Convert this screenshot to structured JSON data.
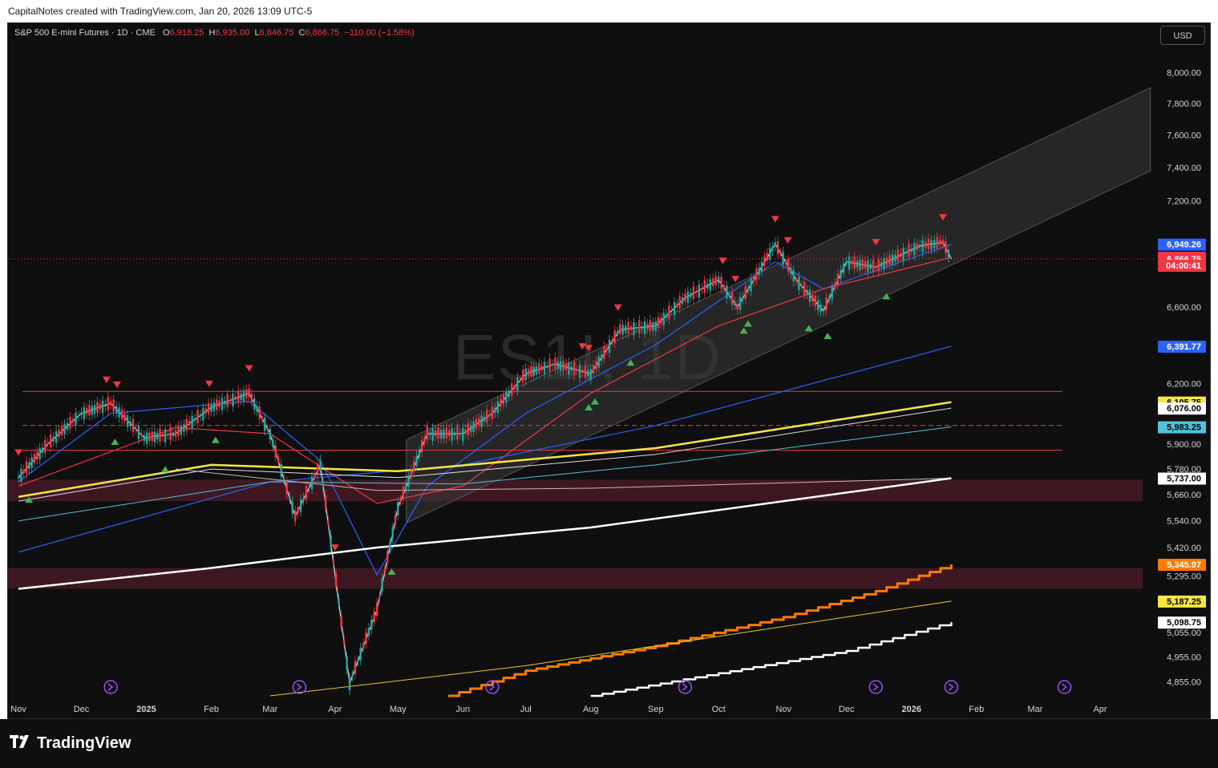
{
  "header": {
    "credit": "CapitalNotes created with TradingView.com, Jan 20, 2026 13:09 UTC-5"
  },
  "legend": {
    "symbol": "S&P 500 E-mini Futures · 1D · CME",
    "o_label": "O",
    "o": "6,918.25",
    "h_label": "H",
    "h": "6,935.00",
    "l_label": "L",
    "l": "6,846.75",
    "c_label": "C",
    "c": "6,866.75",
    "change": "−110.00 (−1.58%)"
  },
  "currency_button": "USD",
  "watermark": "ES1!, 1D",
  "footer": {
    "brand": "TradingView",
    "logo_icon": "tradingview-logo-icon"
  },
  "colors": {
    "up": "#26a69a",
    "down": "#f23645",
    "blue_ma": "#2962ff",
    "red_ma": "#f23645",
    "yellow_ma": "#f5e642",
    "orange": "#ff7a00",
    "channel": "#2a2a2a"
  },
  "chart_data": {
    "type": "line",
    "title": "S&P 500 E-mini Futures · 1D · CME",
    "xlabel": "",
    "ylabel": "",
    "y_axis": {
      "scale": "log",
      "range": [
        4800,
        8150
      ],
      "ticks": [
        "8,000.00",
        "7,800.00",
        "7,600.00",
        "7,400.00",
        "7,200.00",
        "6,600.00",
        "6,200.00",
        "5,900.00",
        "5,780.00",
        "5,660.00",
        "5,540.00",
        "5,420.00",
        "5,295.00",
        "5,055.00",
        "4,955.00",
        "4,855.00"
      ]
    },
    "x_axis": {
      "ticks": [
        "Nov",
        "Dec",
        "2025",
        "Feb",
        "Mar",
        "Apr",
        "May",
        "Jun",
        "Jul",
        "Aug",
        "Sep",
        "Oct",
        "Nov",
        "Dec",
        "2026",
        "Feb",
        "Mar",
        "Apr"
      ]
    },
    "grid": false,
    "series": [
      {
        "name": "",
        "role": "price",
        "color": "#d1d4dc",
        "points": [
          [
            "2024-11-01",
            5740
          ],
          [
            "2024-11-15",
            5900
          ],
          [
            "2024-12-01",
            6050
          ],
          [
            "2024-12-15",
            6100
          ],
          [
            "2024-12-31",
            5930
          ],
          [
            "2025-01-15",
            5950
          ],
          [
            "2025-02-01",
            6080
          ],
          [
            "2025-02-19",
            6150
          ],
          [
            "2025-03-01",
            5950
          ],
          [
            "2025-03-13",
            5560
          ],
          [
            "2025-03-25",
            5800
          ],
          [
            "2025-04-04",
            5100
          ],
          [
            "2025-04-08",
            4850
          ],
          [
            "2025-04-21",
            5150
          ],
          [
            "2025-05-01",
            5600
          ],
          [
            "2025-05-15",
            5950
          ],
          [
            "2025-06-01",
            5950
          ],
          [
            "2025-06-15",
            6050
          ],
          [
            "2025-07-01",
            6250
          ],
          [
            "2025-07-15",
            6300
          ],
          [
            "2025-08-01",
            6250
          ],
          [
            "2025-08-15",
            6480
          ],
          [
            "2025-09-01",
            6500
          ],
          [
            "2025-09-15",
            6650
          ],
          [
            "2025-10-01",
            6750
          ],
          [
            "2025-10-10",
            6600
          ],
          [
            "2025-10-28",
            6950
          ],
          [
            "2025-11-07",
            6750
          ],
          [
            "2025-11-20",
            6580
          ],
          [
            "2025-12-01",
            6850
          ],
          [
            "2025-12-15",
            6820
          ],
          [
            "2026-01-05",
            6940
          ],
          [
            "2026-01-16",
            6960
          ],
          [
            "2026-01-20",
            6866.75
          ]
        ]
      },
      {
        "name": "",
        "role": "blue-ma-short",
        "color": "#2962ff",
        "points": [
          [
            "2024-11-01",
            5720
          ],
          [
            "2024-12-15",
            6050
          ],
          [
            "2025-02-19",
            6110
          ],
          [
            "2025-03-25",
            5820
          ],
          [
            "2025-04-21",
            5300
          ],
          [
            "2025-05-15",
            5700
          ],
          [
            "2025-07-01",
            6050
          ],
          [
            "2025-09-01",
            6400
          ],
          [
            "2025-10-28",
            6850
          ],
          [
            "2025-11-20",
            6700
          ],
          [
            "2026-01-20",
            6949.26
          ]
        ]
      },
      {
        "name": "",
        "role": "red-ma",
        "color": "#f23645",
        "points": [
          [
            "2024-11-01",
            5700
          ],
          [
            "2025-01-15",
            5980
          ],
          [
            "2025-03-01",
            5950
          ],
          [
            "2025-04-21",
            5620
          ],
          [
            "2025-06-01",
            5700
          ],
          [
            "2025-08-01",
            6150
          ],
          [
            "2025-10-01",
            6500
          ],
          [
            "2025-11-20",
            6700
          ],
          [
            "2026-01-20",
            6874.91
          ]
        ]
      },
      {
        "name": "",
        "role": "blue-ma-long",
        "color": "#2962ff",
        "points": [
          [
            "2024-11-01",
            5400
          ],
          [
            "2025-03-01",
            5720
          ],
          [
            "2025-06-01",
            5800
          ],
          [
            "2025-09-01",
            5990
          ],
          [
            "2026-01-20",
            6391.77
          ]
        ]
      },
      {
        "name": "",
        "role": "yellow-ma",
        "color": "#f5e642",
        "points": [
          [
            "2024-11-01",
            5650
          ],
          [
            "2025-02-01",
            5800
          ],
          [
            "2025-05-01",
            5770
          ],
          [
            "2025-09-01",
            5880
          ],
          [
            "2026-01-20",
            6105.75
          ]
        ]
      },
      {
        "name": "",
        "role": "white-ma",
        "color": "#e0e0e0",
        "points": [
          [
            "2024-11-01",
            5630
          ],
          [
            "2025-02-01",
            5780
          ],
          [
            "2025-05-01",
            5740
          ],
          [
            "2025-09-01",
            5850
          ],
          [
            "2026-01-20",
            6076.0
          ]
        ]
      },
      {
        "name": "",
        "role": "teal-ma",
        "color": "#4fc3d9",
        "points": [
          [
            "2024-11-01",
            5540
          ],
          [
            "2025-03-01",
            5720
          ],
          [
            "2025-06-01",
            5710
          ],
          [
            "2025-09-01",
            5800
          ],
          [
            "2026-01-20",
            5983.25
          ]
        ]
      },
      {
        "name": "",
        "role": "grey-ma",
        "color": "#c8b6b6",
        "points": [
          [
            "2025-01-15",
            5780
          ],
          [
            "2025-04-21",
            5680
          ],
          [
            "2025-08-01",
            5690
          ],
          [
            "2026-01-20",
            5737.0
          ]
        ]
      },
      {
        "name": "",
        "role": "white-thick-ma",
        "color": "#ffffff",
        "points": [
          [
            "2024-11-01",
            5240
          ],
          [
            "2025-02-01",
            5330
          ],
          [
            "2025-04-21",
            5420
          ],
          [
            "2025-08-01",
            5510
          ],
          [
            "2025-11-01",
            5630
          ],
          [
            "2026-01-20",
            5737.0
          ]
        ]
      },
      {
        "name": "",
        "role": "orange-step",
        "color": "#ff7a00",
        "points": [
          [
            "2025-05-25",
            4800
          ],
          [
            "2025-07-01",
            4900
          ],
          [
            "2025-09-01",
            5000
          ],
          [
            "2025-11-01",
            5120
          ],
          [
            "2025-12-15",
            5230
          ],
          [
            "2026-01-20",
            5345.97
          ]
        ]
      },
      {
        "name": "",
        "role": "thin-yellow",
        "color": "#e8c830",
        "points": [
          [
            "2025-03-01",
            4800
          ],
          [
            "2025-07-01",
            4920
          ],
          [
            "2025-10-01",
            5040
          ],
          [
            "2026-01-20",
            5187.25
          ]
        ]
      },
      {
        "name": "",
        "role": "white-step",
        "color": "#ffffff",
        "points": [
          [
            "2025-08-01",
            4800
          ],
          [
            "2025-10-01",
            4890
          ],
          [
            "2025-12-01",
            4980
          ],
          [
            "2026-01-20",
            5098.75
          ]
        ]
      }
    ],
    "channel": {
      "upper": [
        [
          "2025-05-05",
          5920
        ],
        [
          "2026-04-25",
          7900
        ]
      ],
      "lower": [
        [
          "2025-05-05",
          5530
        ],
        [
          "2026-04-25",
          7380
        ]
      ]
    },
    "horizontal_levels": [
      {
        "value": 6866.75,
        "style": "dotted",
        "color": "#f23645"
      },
      {
        "value": 6160,
        "style": "solid",
        "color": "#f23645"
      },
      {
        "value": 5990,
        "style": "dashed",
        "color": "#f23645"
      },
      {
        "value": 5870,
        "style": "solid",
        "color": "#f23645"
      }
    ],
    "zones": [
      {
        "low": 5630,
        "high": 5730,
        "color": "#4a1a24"
      },
      {
        "low": 5240,
        "high": 5330,
        "color": "#4a1a24"
      }
    ],
    "markers_down": [
      "2024-11-01",
      "2024-12-13",
      "2024-12-18",
      "2025-01-31",
      "2025-02-19",
      "2025-04-01",
      "2025-07-28",
      "2025-07-31",
      "2025-08-14",
      "2025-10-03",
      "2025-10-09",
      "2025-10-28",
      "2025-11-03",
      "2025-12-15",
      "2026-01-16"
    ],
    "markers_up": [
      "2024-11-06",
      "2024-12-17",
      "2025-01-10",
      "2025-02-03",
      "2025-04-28",
      "2025-07-31",
      "2025-08-03",
      "2025-08-20",
      "2025-10-13",
      "2025-10-15",
      "2025-11-13",
      "2025-11-22",
      "2025-12-20"
    ],
    "price_labels": [
      {
        "text": "6,949.26",
        "value": 6949.26,
        "bg": "#2962ff",
        "fg": "#ffffff"
      },
      {
        "text": "6,874.91",
        "value": 6874.91,
        "bg": "#f23645",
        "fg": "#ffffff"
      },
      {
        "text": "6,866.75",
        "value": 6866.75,
        "bg": "#f23645",
        "fg": "#ffffff"
      },
      {
        "text": "04:00:41",
        "value": 6830,
        "bg": "#f23645",
        "fg": "#ffffff"
      },
      {
        "text": "6,391.77",
        "value": 6391.77,
        "bg": "#2962ff",
        "fg": "#ffffff"
      },
      {
        "text": "6,105.75",
        "value": 6105.75,
        "bg": "#f5e642",
        "fg": "#000000"
      },
      {
        "text": "6,076.00",
        "value": 6076.0,
        "bg": "#ffffff",
        "fg": "#000000"
      },
      {
        "text": "5,983.25",
        "value": 5983.25,
        "bg": "#4fc3d9",
        "fg": "#000000"
      },
      {
        "text": "5,737.00",
        "value": 5737.0,
        "bg": "#ffffff",
        "fg": "#000000"
      },
      {
        "text": "5,345.97",
        "value": 5345.97,
        "bg": "#ff7a00",
        "fg": "#ffffff"
      },
      {
        "text": "5,187.25",
        "value": 5187.25,
        "bg": "#f5e642",
        "fg": "#000000"
      },
      {
        "text": "5,098.75",
        "value": 5098.75,
        "bg": "#ffffff",
        "fg": "#000000"
      }
    ],
    "events": [
      "2024-12-15",
      "2025-03-15",
      "2025-06-15",
      "2025-09-15",
      "2025-12-15",
      "2026-01-20",
      "2026-03-15"
    ]
  }
}
